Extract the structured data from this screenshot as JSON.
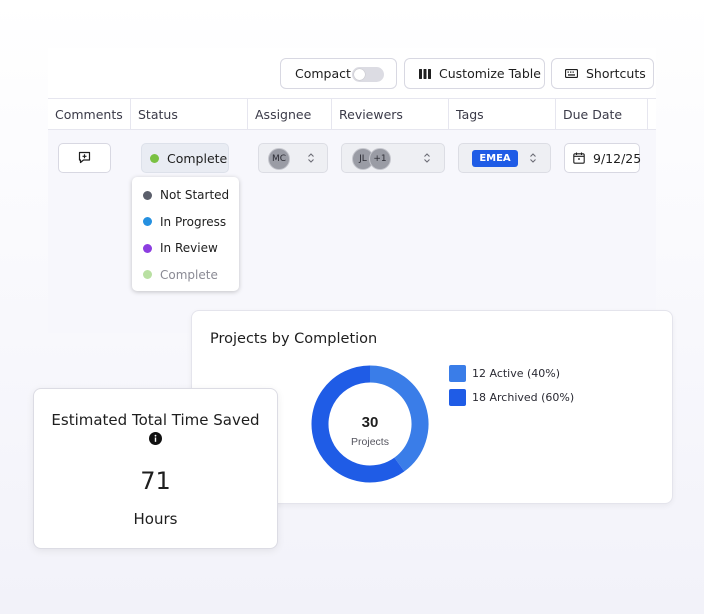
{
  "toolbar": {
    "compact_label": "Compact",
    "compact_enabled": false,
    "customize_label": "Customize Table",
    "shortcuts_label": "Shortcuts"
  },
  "table": {
    "columns": [
      "Comments",
      "Status",
      "Assignee",
      "Reviewers",
      "Tags",
      "Due Date"
    ],
    "row": {
      "status": "Complete",
      "status_color": "#7ac142",
      "assignee_initials": "MC",
      "reviewer_initials": "JL",
      "reviewer_extra": "+1",
      "tag": "EMEA",
      "due_date": "9/12/25"
    }
  },
  "status_menu": {
    "options": [
      {
        "label": "Not Started",
        "color": "#5b5f6b"
      },
      {
        "label": "In Progress",
        "color": "#2590e0"
      },
      {
        "label": "In Review",
        "color": "#8c3ee0"
      },
      {
        "label": "Complete",
        "color": "#b9e0a2"
      }
    ]
  },
  "chart_card": {
    "title": "Projects by Completion",
    "center_value": "30",
    "center_label": "Projects",
    "chart_data": {
      "type": "pie",
      "title": "Projects by Completion",
      "categories": [
        "Active",
        "Archived"
      ],
      "values": [
        12,
        18
      ],
      "percent": [
        40,
        60
      ],
      "colors": [
        "#3a7de8",
        "#1f5ce6"
      ],
      "legend_labels": [
        "12 Active (40%)",
        "18 Archived (60%)"
      ],
      "legend_position": "right",
      "donut": true
    }
  },
  "time_card": {
    "title": "Estimated Total Time Saved",
    "value": "71",
    "unit": "Hours"
  }
}
